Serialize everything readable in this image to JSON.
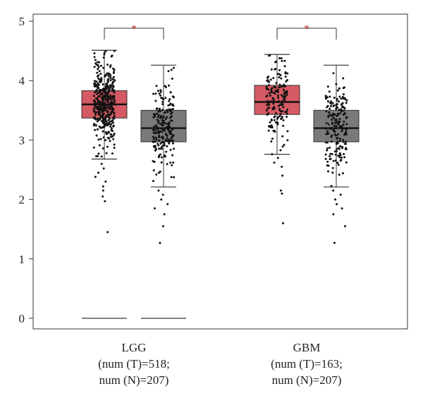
{
  "chart_data": {
    "type": "box",
    "ylim": [
      0,
      5
    ],
    "yticks": [
      0,
      1,
      2,
      3,
      4,
      5
    ],
    "grid": false,
    "colors": {
      "tumor": "#d45a63",
      "normal": "#7a7a7a",
      "significance": "#c0392b"
    },
    "groups": [
      {
        "name": "LGG",
        "label_lines": [
          "LGG",
          "(num (T)=518;",
          "num (N)=207)"
        ],
        "significance": "*",
        "boxes": [
          {
            "series": "T",
            "n": 518,
            "min": 2.68,
            "q1": 3.37,
            "median": 3.6,
            "q3": 3.83,
            "max": 4.51,
            "outliers": [
              1.45,
              1.97,
              2.05,
              2.15,
              2.22,
              2.3,
              2.38,
              2.45,
              2.52,
              2.6
            ]
          },
          {
            "series": "N",
            "n": 207,
            "min": 2.21,
            "q1": 2.97,
            "median": 3.2,
            "q3": 3.5,
            "max": 4.26,
            "outliers": [
              1.27,
              1.55,
              1.75,
              1.85,
              1.92,
              2.0,
              2.08,
              2.15
            ]
          }
        ],
        "zero_lines": true
      },
      {
        "name": "GBM",
        "label_lines": [
          "GBM",
          "(num (T)=163;",
          "num (N)=207)"
        ],
        "significance": "*",
        "boxes": [
          {
            "series": "T",
            "n": 163,
            "min": 2.76,
            "q1": 3.43,
            "median": 3.64,
            "q3": 3.92,
            "max": 4.44,
            "outliers": [
              1.6,
              2.1,
              2.15,
              2.4,
              2.55,
              2.62,
              2.7
            ]
          },
          {
            "series": "N",
            "n": 207,
            "min": 2.21,
            "q1": 2.97,
            "median": 3.2,
            "q3": 3.5,
            "max": 4.26,
            "outliers": [
              1.27,
              1.55,
              1.75,
              1.85,
              1.92,
              2.0,
              2.08,
              2.15
            ]
          }
        ],
        "zero_lines": false
      }
    ]
  }
}
